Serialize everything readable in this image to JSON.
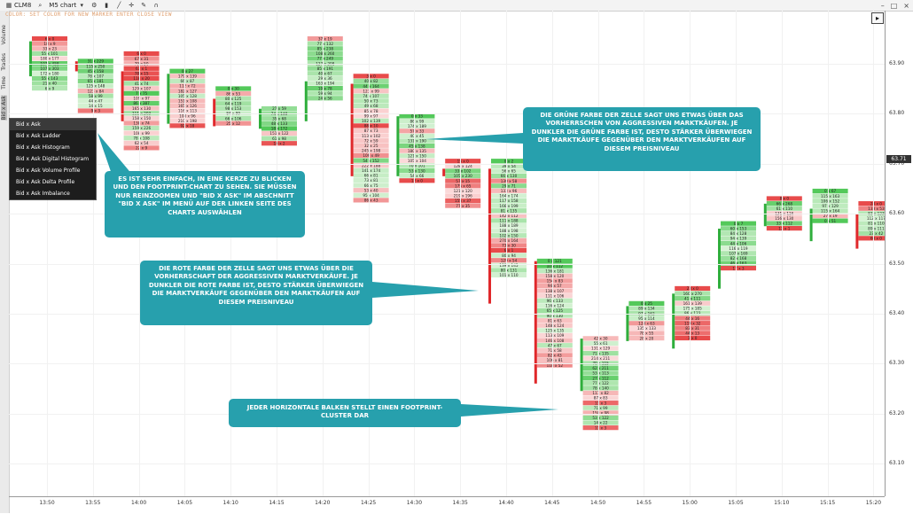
{
  "toolbar": {
    "symbol": "CLM8",
    "chart_type": "M5 chart",
    "icons": [
      "search-icon",
      "chart-settings-icon",
      "candle-icon",
      "line-tool-icon",
      "crosshair-icon",
      "pen-icon",
      "magnet-icon"
    ],
    "window_icons": [
      "minimize-icon",
      "maximize-icon",
      "close-icon"
    ]
  },
  "info_line": "COLOR: SET COLOR FOR NEW MARKER  ENTER  CLOSE  VIEW",
  "left_tabs": [
    "Volume",
    "Trades",
    "Time",
    "Bid x Ask"
  ],
  "menu": {
    "items": [
      "Bid x Ask",
      "Bid x Ask Ladder",
      "Bid x Ask Histogram",
      "Bid x Ask Digital Histogram",
      "Bid x Ask Volume Profile",
      "Bid x Ask Delta Profile",
      "Bid x Ask Imbalance"
    ],
    "selected": 0
  },
  "price_axis": {
    "ticks": [
      "63.90",
      "63.80",
      "63.70",
      "63.60",
      "63.50",
      "63.40",
      "63.30",
      "63.20",
      "63.10"
    ],
    "current_price": "63.71"
  },
  "time_axis": {
    "ticks": [
      "13:50",
      "13:55",
      "14:00",
      "14:05",
      "14:10",
      "14:15",
      "14:20",
      "14:25",
      "14:30",
      "14:35",
      "14:40",
      "14:45",
      "14:50",
      "14:55",
      "15:00",
      "15:05",
      "15:10",
      "15:15",
      "15:20"
    ]
  },
  "callouts": {
    "simple": "Es ist sehr einfach, in eine Kerze zu blicken und den Footprint-Chart zu sehen. Sie müssen nur reinzoomen und \"Bid x Ask\" im Abschnitt \"Bid x Ask\" im Menü auf der linken Seite des Charts auswählen",
    "green": "Die grüne Farbe der Zelle sagt uns etwas über das Vorherrschen von aggressiven Marktkäufen. Je dunkler die grüne Farbe ist, desto stärker überwiegen die Marktkäufe gegenüber den Marktverkäufen auf diesem Preisniveau",
    "red": "Die rote Farbe der Zelle sagt uns etwas über die Vorherrschaft der aggressiven Marktverkäufe. Je dunkler die rote Farbe ist, desto stärker überwiegen die Marktverkäufe gegenüber den Marktkäufen auf diesem Preisniveau",
    "cluster": "Jeder horizontale Balken stellt einen Footprint-Cluster dar"
  },
  "colors": {
    "callout": "#27a0ad",
    "bull": "#2fae3c",
    "bear": "#e0282b",
    "cell_green_light": "#d9f3d7",
    "cell_green_dark": "#53c95a",
    "cell_red_light": "#fbdada",
    "cell_red_dark": "#e84b4b"
  },
  "clusters": [
    {
      "time": "13:50",
      "open": 63.875,
      "close": 63.945,
      "high": 63.955,
      "low": 63.855,
      "cells": [
        "6 x 0",
        "18 x 9",
        "33 x 23",
        "55 x 101",
        "180 x 177",
        "107 x 458",
        "107 x 303",
        "172 x 180",
        "55 x 143",
        "21 x 40",
        "6 x 9"
      ]
    },
    {
      "time": "13:55",
      "open": 63.905,
      "close": 63.885,
      "high": 63.91,
      "low": 63.855,
      "cells": [
        "31 x 229",
        "115 x 250",
        "45 x 158",
        "78 x 107",
        "65 x 181",
        "125 x 148",
        "123 x 84",
        "58 x 99",
        "44 x 47",
        "14 x 15",
        "9 x 3"
      ]
    },
    {
      "time": "14:00",
      "open": 63.885,
      "close": 63.785,
      "high": 63.925,
      "low": 63.745,
      "cells": [
        "6 x 0",
        "67 x 31",
        "79 x 50",
        "67 x 1",
        "78 x 15",
        "118 x 20",
        "41 x 74",
        "129 x 107",
        "7 x 75",
        "109 x 97",
        "86 x 387",
        "165 x 130",
        "111 x 203",
        "158 x 150",
        "138 x 74",
        "159 x 226",
        "108 x 99",
        "78 x 108",
        "62 x 54",
        "22 x 9"
      ]
    },
    {
      "time": "14:05",
      "open": 63.78,
      "close": 63.88,
      "high": 63.89,
      "low": 63.775,
      "cells": [
        "0 x 27",
        "179 x 139",
        "66 x 87",
        "112 x 72",
        "182 x 127",
        "105 x 128",
        "151 x 108",
        "165 x 126",
        "116 x 113",
        "108 x 96",
        "210 x 198",
        "92 x 18"
      ]
    },
    {
      "time": "14:10",
      "open": 63.83,
      "close": 63.775,
      "high": 63.855,
      "low": 63.76,
      "cells": [
        "0 x 30",
        "86 x 53",
        "80 x 125",
        "64 x 119",
        "98 x 153",
        "84 x 99",
        "66 x 106",
        "25 x 12"
      ]
    },
    {
      "time": "14:15",
      "open": 63.77,
      "close": 63.81,
      "high": 63.815,
      "low": 63.76,
      "cells": [
        "27 x 59",
        "74 x 148",
        "35 x 68",
        "48 x 133",
        "18 x 172",
        "151 x 122",
        "61 x 98",
        "10 x 2"
      ]
    },
    {
      "time": "14:20",
      "open": 63.785,
      "close": 63.865,
      "high": 63.955,
      "low": 63.775,
      "cells": [
        "37 x 19",
        "77 x 132",
        "85 x 238",
        "108 x 260",
        "77 x 249",
        "127 x 208",
        "85 x 191",
        "40 x 67",
        "29 x 36",
        "163 x 194",
        "19 x 78",
        "59 x 94",
        "24 x 56"
      ]
    },
    {
      "time": "14:25",
      "open": 63.86,
      "close": 63.675,
      "high": 63.88,
      "low": 63.545,
      "cells": [
        "3 x 0",
        "40 x 82",
        "44 x 164",
        "123 x 99",
        "74 x 107",
        "50 x 73",
        "49 x 68",
        "85 x 78",
        "99 x 97",
        "102 x 139",
        "88 x 10",
        "87 x 73",
        "113 x 102",
        "72 x 59",
        "32 x 25",
        "245 x 198",
        "106 x 49",
        "54 x 152",
        "222 x 188",
        "141 x 174",
        "66 x 81",
        "73 x 81",
        "66 x 75",
        "53 x 40",
        "95 x 104",
        "86 x 43"
      ]
    },
    {
      "time": "14:30",
      "open": 63.675,
      "close": 63.795,
      "high": 63.8,
      "low": 63.63,
      "cells": [
        "0 x 33",
        "86 x 99",
        "174 x 189",
        "57 x 33",
        "40 x 45",
        "131 x 190",
        "45 x 138",
        "180 x 135",
        "121 x 150",
        "105 x 104",
        "70 x 101",
        "53 x 130",
        "54 x 66",
        "12 x 0"
      ]
    },
    {
      "time": "14:35",
      "open": 63.69,
      "close": 63.675,
      "high": 63.71,
      "low": 63.62,
      "cells": [
        "15 x 0",
        "128 x 124",
        "33 x 102",
        "105 x 230",
        "57 x 15",
        "175 x 65",
        "121 x 120",
        "219 x 196",
        "155 x 37",
        "77 x 35"
      ]
    },
    {
      "time": "14:40",
      "open": 63.69,
      "close": 63.42,
      "high": 63.71,
      "low": 63.405,
      "cells": [
        "0 x 2",
        "39 x 54",
        "56 x 65",
        "66 x 130",
        "130 x 58",
        "29 x 71",
        "133 x 96",
        "164 x 174",
        "117 x 158",
        "166 x 199",
        "81 x 135",
        "142 x 112",
        "111 x 188",
        "188 x 189",
        "188 x 198",
        "102 x 150",
        "270 x 164",
        "73 x 30",
        "6 x 1",
        "80 x 94",
        "129 x 54",
        "139 x 145",
        "80 x 131",
        "101 x 110"
      ]
    },
    {
      "time": "14:45",
      "open": 63.505,
      "close": 63.26,
      "high": 63.51,
      "low": 63.255,
      "cells": [
        "0 x 121",
        "10 x 112",
        "136 x 181",
        "158 x 120",
        "154 x 83",
        "94 x 57",
        "138 x 107",
        "111 x 106",
        "96 x 133",
        "116 x 124",
        "65 x 125",
        "90 x 130",
        "81 x 63",
        "148 x 124",
        "125 x 135",
        "113 x 109",
        "146 x 108",
        "47 x 67",
        "71 x 58",
        "82 x 43",
        "106 x 81",
        "118 x 52"
      ]
    },
    {
      "time": "14:50",
      "open": 63.245,
      "close": 63.35,
      "high": 63.355,
      "low": 63.125,
      "cells": [
        "42 x 30",
        "55 x 61",
        "131 x 129",
        "71 x 135",
        "214 x 211",
        "70 x 115",
        "62 x 211",
        "53 x 113",
        "27 x 112",
        "77 x 122",
        "78 x 140",
        "117 x 82",
        "87 x 83",
        "11 x 3",
        "71 x 99",
        "150 x 98",
        "53 x 122",
        "14 x 22",
        "11 x 3"
      ]
    },
    {
      "time": "14:55",
      "open": 63.345,
      "close": 63.415,
      "high": 63.425,
      "low": 63.34,
      "cells": [
        "0 x 25",
        "89 x 134",
        "97 x 162",
        "95 x 114",
        "124 x 63",
        "135 x 133",
        "78 x 55",
        "28 x 20"
      ]
    },
    {
      "time": "15:00",
      "open": 63.33,
      "close": 63.44,
      "high": 63.455,
      "low": 63.3,
      "cells": [
        "23 x 0",
        "160 x 270",
        "41 x 111",
        "161 x 139",
        "175 x 185",
        "86 x 123",
        "44 x 16",
        "119 x 32",
        "83 x 31",
        "44 x 13",
        "1 x 0"
      ]
    },
    {
      "time": "15:05",
      "open": 63.45,
      "close": 63.57,
      "high": 63.585,
      "low": 63.445,
      "cells": [
        "0 x 7",
        "60 x 153",
        "84 x 128",
        "94 x 139",
        "44 x 106",
        "116 x 119",
        "107 x 169",
        "82 x 168",
        "46 x 163",
        "17 x 3"
      ]
    },
    {
      "time": "15:10",
      "open": 63.575,
      "close": 63.62,
      "high": 63.635,
      "low": 63.51,
      "cells": [
        "8 x 0",
        "66 x 268",
        "61 x 110",
        "131 x 116",
        "156 x 130",
        "33 x 112",
        "12 x 1"
      ]
    },
    {
      "time": "15:15",
      "open": 63.545,
      "close": 63.61,
      "high": 63.65,
      "low": 63.535,
      "cells": [
        "0 x 67",
        "115 x 163",
        "106 x 152",
        "97 x 129",
        "115 x 164",
        "27 x 19",
        "0 x 51"
      ]
    },
    {
      "time": "15:20",
      "open": 63.6,
      "close": 63.53,
      "high": 63.625,
      "low": 63.5,
      "cells": [
        "28 x 0",
        "133 x 53",
        "83 x 123",
        "112 x 117",
        "81 x 110",
        "89 x 111",
        "23 x 42",
        "60 x 0"
      ]
    }
  ]
}
